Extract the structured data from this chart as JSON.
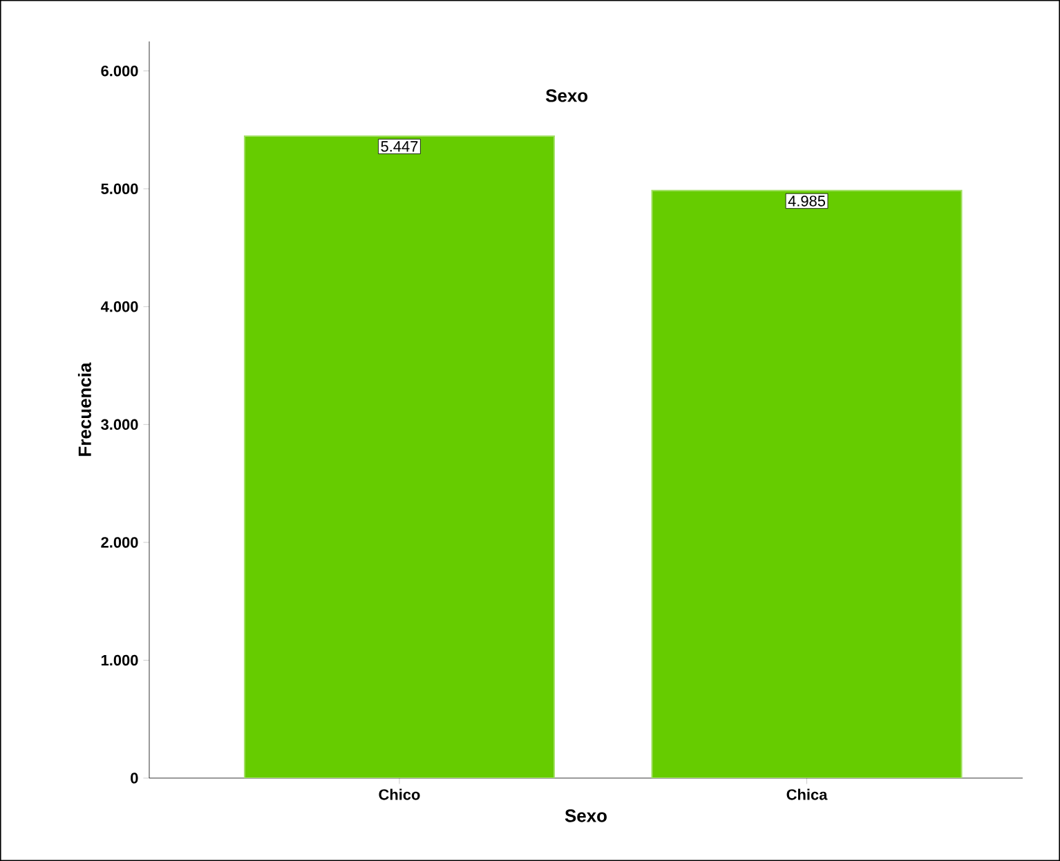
{
  "chart_data": {
    "type": "bar",
    "title": "Sexo",
    "xlabel": "Sexo",
    "ylabel": "Frecuencia",
    "categories": [
      "Chico",
      "Chica"
    ],
    "values": [
      5447,
      4985
    ],
    "value_labels": [
      "5.447",
      "4.985"
    ],
    "color": "#66cc00",
    "ylim": [
      0,
      6250
    ],
    "yticks": [
      0,
      {
        "value": 1000,
        "label": "1.000"
      },
      {
        "value": 2000,
        "label": "2.000"
      },
      {
        "value": 3000,
        "label": "3.000"
      },
      {
        "value": 4000,
        "label": "4.000"
      },
      {
        "value": 5000,
        "label": "5.000"
      },
      {
        "value": 6000,
        "label": "6.000"
      }
    ]
  }
}
